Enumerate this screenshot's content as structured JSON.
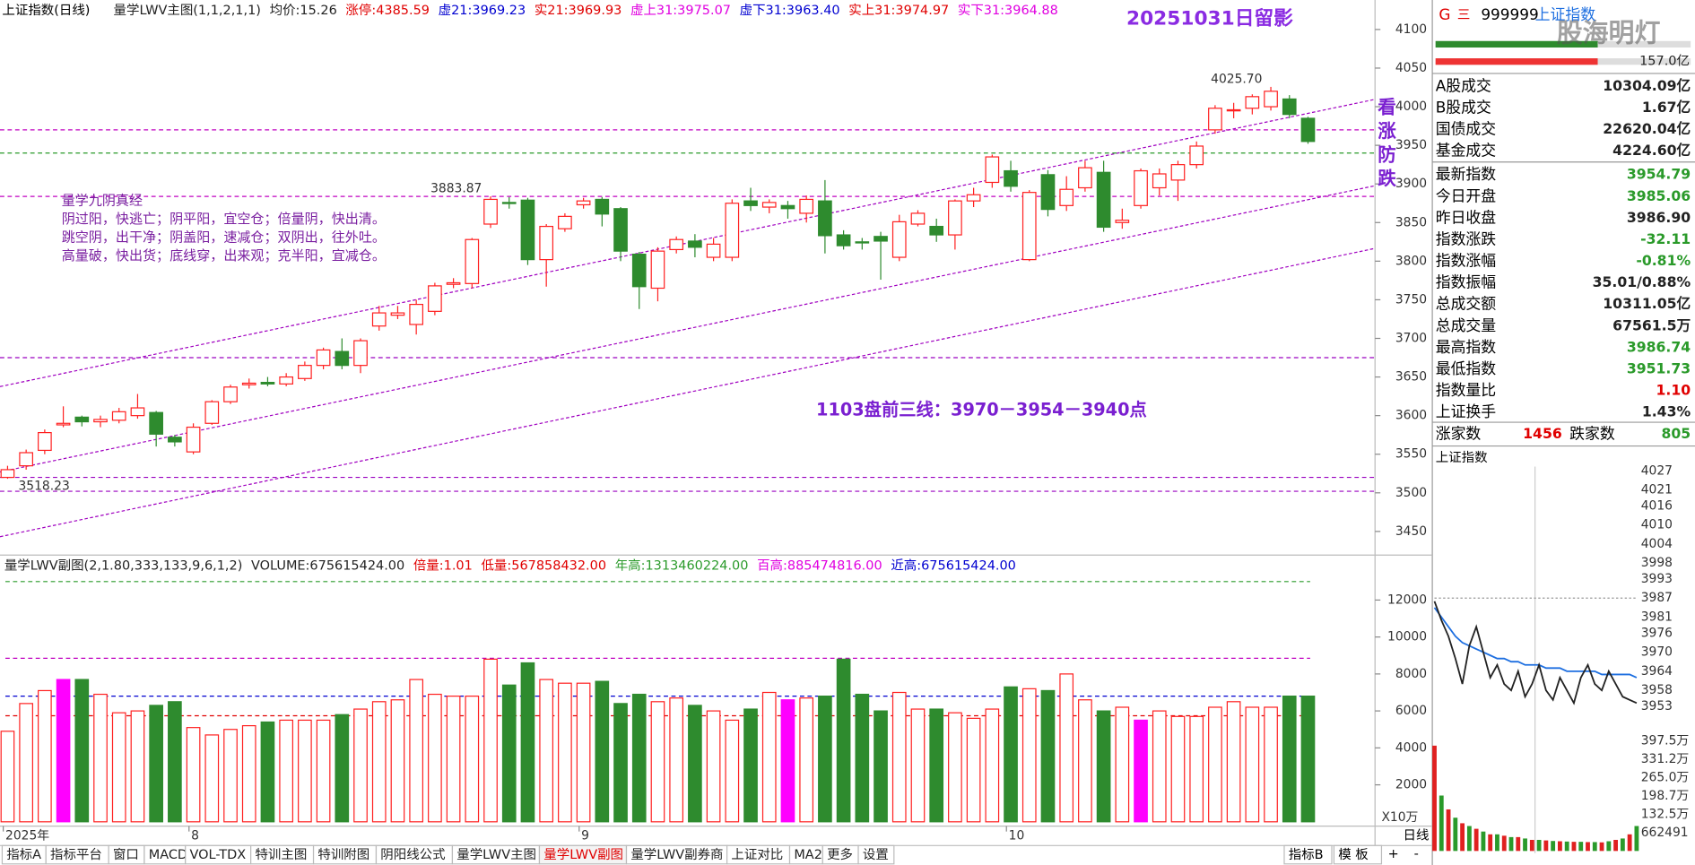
{
  "header": {
    "title": "上证指数(日线)",
    "indicator": "量学LWV主图(1,1,2,1,1)",
    "stats": [
      {
        "label": "均价:",
        "value": "15.26",
        "color": "#222"
      },
      {
        "label": "涨停:",
        "value": "4385.59",
        "color": "#e00000"
      },
      {
        "label": "虚21:",
        "value": "3969.23",
        "color": "#0000d0"
      },
      {
        "label": "实21:",
        "value": "3969.93",
        "color": "#e00000"
      },
      {
        "label": "虚上31:",
        "value": "3975.07",
        "color": "#e000e0"
      },
      {
        "label": "虚下31:",
        "value": "3963.40",
        "color": "#0000d0"
      },
      {
        "label": "实上31:",
        "value": "3974.97",
        "color": "#e00000"
      },
      {
        "label": "实下31:",
        "value": "3964.88",
        "color": "#e000e0"
      }
    ]
  },
  "main_chart": {
    "annotation_title": "20251031日留影",
    "notes": [
      "量学九阴真经",
      "阴过阳，快逃亡；阴平阳，宜空仓；倍量阴，快出清。",
      "跳空阴，出干净；阴盖阳，速减仓；双阴出，往外吐。",
      "高量破，快出货；底线穿，出来观；克半阳，宜减仓。"
    ],
    "plan": "1103盘前三线：3970－3954－3940点",
    "vertical_note": "看涨防跌",
    "price_labels": [
      {
        "value": 4025.7,
        "label": "4025.70"
      },
      {
        "value": 3883.87,
        "label": "3883.87"
      },
      {
        "value": 3518.23,
        "label": "3518.23"
      }
    ],
    "ylim": [
      3425,
      4113
    ],
    "yticks": [
      3450,
      3500,
      3550,
      3600,
      3650,
      3700,
      3750,
      3800,
      3850,
      3900,
      3950,
      4000,
      4050,
      4100
    ],
    "levels": [
      {
        "value": 3970,
        "color": "#c000c0"
      },
      {
        "value": 3940,
        "color": "#2a9a2a"
      },
      {
        "value": 3883.87,
        "color": "#c000c0"
      },
      {
        "value": 3675,
        "color": "#9a00c0"
      },
      {
        "value": 3520,
        "color": "#9a00c0"
      },
      {
        "value": 3502,
        "color": "#9a00c0"
      }
    ],
    "up_color": "#ff2020",
    "down_color": "#2e8b2e",
    "candles": [
      [
        3520,
        3530,
        3535,
        3518.23
      ],
      [
        3535,
        3552,
        3556,
        3530
      ],
      [
        3555,
        3578,
        3582,
        3550
      ],
      [
        3588,
        3590,
        3612,
        3585
      ],
      [
        3598,
        3592,
        3600,
        3586
      ],
      [
        3592,
        3595,
        3600,
        3585
      ],
      [
        3594,
        3605,
        3610,
        3590
      ],
      [
        3600,
        3610,
        3628,
        3596
      ],
      [
        3604,
        3576,
        3606,
        3560
      ],
      [
        3572,
        3566,
        3575,
        3560
      ],
      [
        3553,
        3585,
        3590,
        3550
      ],
      [
        3590,
        3618,
        3620,
        3588
      ],
      [
        3618,
        3637,
        3640,
        3615
      ],
      [
        3640,
        3642,
        3648,
        3635
      ],
      [
        3643,
        3641,
        3650,
        3638
      ],
      [
        3641,
        3650,
        3655,
        3638
      ],
      [
        3648,
        3665,
        3670,
        3645
      ],
      [
        3665,
        3685,
        3688,
        3660
      ],
      [
        3683,
        3665,
        3700,
        3660
      ],
      [
        3665,
        3697,
        3700,
        3655
      ],
      [
        3716,
        3733,
        3742,
        3710
      ],
      [
        3730,
        3733,
        3742,
        3725
      ],
      [
        3718,
        3744,
        3750,
        3705
      ],
      [
        3735,
        3768,
        3772,
        3730
      ],
      [
        3770,
        3772,
        3778,
        3765
      ],
      [
        3771,
        3828,
        3830,
        3765
      ],
      [
        3848,
        3880,
        3883.87,
        3843
      ],
      [
        3876,
        3875,
        3883,
        3868
      ],
      [
        3879,
        3802,
        3882,
        3795
      ],
      [
        3802,
        3845,
        3848,
        3767
      ],
      [
        3842,
        3858,
        3862,
        3838
      ],
      [
        3873,
        3878,
        3882,
        3868
      ],
      [
        3880,
        3861,
        3883,
        3845
      ],
      [
        3868,
        3813,
        3870,
        3800
      ],
      [
        3809,
        3767,
        3812,
        3738
      ],
      [
        3765,
        3813,
        3818,
        3748
      ],
      [
        3815,
        3828,
        3832,
        3810
      ],
      [
        3826,
        3818,
        3835,
        3805
      ],
      [
        3805,
        3822,
        3830,
        3800
      ],
      [
        3805,
        3875,
        3880,
        3800
      ],
      [
        3878,
        3872,
        3895,
        3865
      ],
      [
        3870,
        3876,
        3880,
        3862
      ],
      [
        3872,
        3868,
        3878,
        3855
      ],
      [
        3862,
        3880,
        3885,
        3850
      ],
      [
        3878,
        3833,
        3905,
        3810
      ],
      [
        3834,
        3820,
        3840,
        3815
      ],
      [
        3825,
        3824,
        3830,
        3815
      ],
      [
        3832,
        3826,
        3838,
        3776
      ],
      [
        3805,
        3851,
        3860,
        3800
      ],
      [
        3848,
        3862,
        3866,
        3845
      ],
      [
        3845,
        3834,
        3855,
        3825
      ],
      [
        3834,
        3878,
        3880,
        3815
      ],
      [
        3878,
        3886,
        3895,
        3870
      ],
      [
        3902,
        3935,
        3938,
        3895
      ],
      [
        3917,
        3897,
        3930,
        3890
      ],
      [
        3802,
        3889,
        3892,
        3800
      ],
      [
        3912,
        3867,
        3918,
        3858
      ],
      [
        3872,
        3893,
        3910,
        3865
      ],
      [
        3895,
        3921,
        3930,
        3890
      ],
      [
        3915,
        3844,
        3930,
        3838
      ],
      [
        3850,
        3853,
        3868,
        3842
      ],
      [
        3872,
        3917,
        3920,
        3868
      ],
      [
        3895,
        3913,
        3920,
        3885
      ],
      [
        3905,
        3925,
        3930,
        3878
      ],
      [
        3925,
        3949,
        3955,
        3920
      ],
      [
        3970,
        3998,
        4002,
        3965
      ],
      [
        3995,
        3996,
        4005,
        3985
      ],
      [
        3998,
        4013,
        4016,
        3990
      ],
      [
        4000,
        4020,
        4025.7,
        3995
      ],
      [
        4010,
        3990,
        4015,
        3985
      ],
      [
        3985,
        3955,
        3987,
        3952
      ]
    ]
  },
  "volume_chart": {
    "title": "量学LWV副图(2,1.80,333,133,9,6,1,2)",
    "stats": [
      {
        "label": "VOLUME:",
        "value": "675615424.00",
        "color": "#222"
      },
      {
        "label": "倍量:",
        "value": "1.01",
        "color": "#e00000"
      },
      {
        "label": "低量:",
        "value": "567858432.00",
        "color": "#e00000"
      },
      {
        "label": "年高:",
        "value": "1313460224.00",
        "color": "#2a9a2a"
      },
      {
        "label": "百高:",
        "value": "885474816.00",
        "color": "#e000e0"
      },
      {
        "label": "近高:",
        "value": "675615424.00",
        "color": "#0000d0"
      }
    ],
    "unit": "X10万",
    "ylim": [
      0,
      14200
    ],
    "yticks": [
      2000,
      4000,
      6000,
      8000,
      10000,
      12000
    ],
    "levels": [
      {
        "value": 13000,
        "color": "#2a9a2a"
      },
      {
        "value": 8850,
        "color": "#c000c0"
      },
      {
        "value": 6800,
        "color": "#0000d0"
      },
      {
        "value": 5740,
        "color": "#e00000"
      }
    ],
    "highlight_color": "#ff00ff",
    "highlight_bars": [
      3,
      42,
      61
    ],
    "values": [
      4900,
      6400,
      7100,
      7700,
      7700,
      6900,
      5900,
      6000,
      6300,
      6500,
      5100,
      4700,
      5000,
      5200,
      5400,
      5500,
      5500,
      5500,
      5800,
      6100,
      6500,
      6600,
      7700,
      6900,
      6800,
      6800,
      8800,
      7400,
      8600,
      7700,
      7500,
      7500,
      7600,
      6400,
      6900,
      6500,
      6700,
      6300,
      6000,
      5500,
      6100,
      7000,
      6600,
      6700,
      6800,
      8800,
      6900,
      6000,
      7000,
      6100,
      6100,
      5900,
      5600,
      6100,
      7300,
      7200,
      7100,
      8000,
      6600,
      6000,
      6200,
      5500,
      6000,
      5700,
      5700,
      6200,
      6500,
      6200,
      6200,
      6800,
      6800
    ]
  },
  "x_labels": [
    {
      "text": "2025年",
      "index": 0
    },
    {
      "text": "8",
      "index": 10
    },
    {
      "text": "9",
      "index": 31
    },
    {
      "text": "10",
      "index": 54
    }
  ],
  "side_panel": {
    "code_prefix": "G",
    "menu": "三",
    "code": "999999",
    "name": "上证指数",
    "watermark": "股海明灯",
    "amount": "157.0亿",
    "rows": [
      {
        "label": "A股成交",
        "value": "10304.09亿",
        "color": "#222"
      },
      {
        "label": "B股成交",
        "value": "1.67亿",
        "color": "#222"
      },
      {
        "label": "国债成交",
        "value": "22620.04亿",
        "color": "#222"
      },
      {
        "label": "基金成交",
        "value": "4224.60亿",
        "color": "#222"
      },
      {
        "label": "最新指数",
        "value": "3954.79",
        "color": "#2a9a2a"
      },
      {
        "label": "今日开盘",
        "value": "3985.06",
        "color": "#2a9a2a"
      },
      {
        "label": "昨日收盘",
        "value": "3986.90",
        "color": "#222"
      },
      {
        "label": "指数涨跌",
        "value": "-32.11",
        "color": "#2a9a2a"
      },
      {
        "label": "指数涨幅",
        "value": "-0.81%",
        "color": "#2a9a2a"
      },
      {
        "label": "指数振幅",
        "value": "35.01/0.88%",
        "color": "#222"
      },
      {
        "label": "总成交额",
        "value": "10311.05亿",
        "color": "#222"
      },
      {
        "label": "总成交量",
        "value": "67561.5万",
        "color": "#222"
      },
      {
        "label": "最高指数",
        "value": "3986.74",
        "color": "#2a9a2a"
      },
      {
        "label": "最低指数",
        "value": "3951.73",
        "color": "#2a9a2a"
      },
      {
        "label": "指数量比",
        "value": "1.10",
        "color": "#e00000"
      },
      {
        "label": "上证换手",
        "value": "1.43%",
        "color": "#222"
      }
    ],
    "breadth": {
      "up_label": "涨家数",
      "up": 1456,
      "down_label": "跌家数",
      "down": 805
    }
  },
  "intraday": {
    "title": "上证指数",
    "ylim": [
      3953,
      4027
    ],
    "yticks": [
      4027,
      4021,
      4016,
      4010,
      4004,
      3998,
      3993,
      3987,
      3981,
      3976,
      3970,
      3964,
      3958,
      3953
    ],
    "prev_close": 3987,
    "price": [
      3986,
      3980,
      3975,
      3968,
      3960,
      3972,
      3978,
      3970,
      3962,
      3966,
      3960,
      3958,
      3964,
      3956,
      3960,
      3966,
      3958,
      3955,
      3962,
      3958,
      3954,
      3962,
      3966,
      3960,
      3958,
      3964,
      3960,
      3956,
      3955,
      3954
    ],
    "average": [
      3984,
      3981,
      3978,
      3975,
      3973,
      3972,
      3971,
      3970,
      3969,
      3968,
      3968,
      3967,
      3967,
      3966,
      3966,
      3966,
      3965,
      3965,
      3965,
      3964,
      3964,
      3964,
      3964,
      3964,
      3963,
      3963,
      3963,
      3963,
      3963,
      3962
    ],
    "vol_ylim": [
      0,
      397.5
    ],
    "vol_ticks": [
      {
        "value": 397.5,
        "label": "397.5万"
      },
      {
        "value": 331.2,
        "label": "331.2万"
      },
      {
        "value": 265,
        "label": "265.0万"
      },
      {
        "value": 198.7,
        "label": "198.7万"
      },
      {
        "value": 132.5,
        "label": "132.5万"
      },
      {
        "value": 66.2491,
        "label": "662491"
      }
    ],
    "volume": [
      380,
      200,
      150,
      120,
      100,
      90,
      80,
      70,
      60,
      60,
      55,
      50,
      50,
      45,
      40,
      40,
      38,
      36,
      35,
      34,
      33,
      33,
      32,
      32,
      31,
      35,
      40,
      45,
      60,
      90
    ]
  },
  "toolbar": {
    "tabs": [
      {
        "label": "指标A"
      },
      {
        "label": "指标平台"
      },
      {
        "label": "窗口"
      },
      {
        "label": "MACD"
      },
      {
        "label": "VOL-TDX"
      },
      {
        "label": "特训主图"
      },
      {
        "label": "特训附图"
      },
      {
        "label": "阴阳线公式"
      },
      {
        "label": "量学LWV主图"
      },
      {
        "label": "量学LWV副图",
        "active": true
      },
      {
        "label": "量学LWV副券商"
      },
      {
        "label": "上证对比"
      },
      {
        "label": "MA2"
      },
      {
        "label": "更多"
      },
      {
        "label": "设置"
      }
    ],
    "right_tabs": [
      "指标B",
      "模 板"
    ],
    "period": "日线",
    "zoom_in": "+",
    "zoom_out": "-"
  }
}
